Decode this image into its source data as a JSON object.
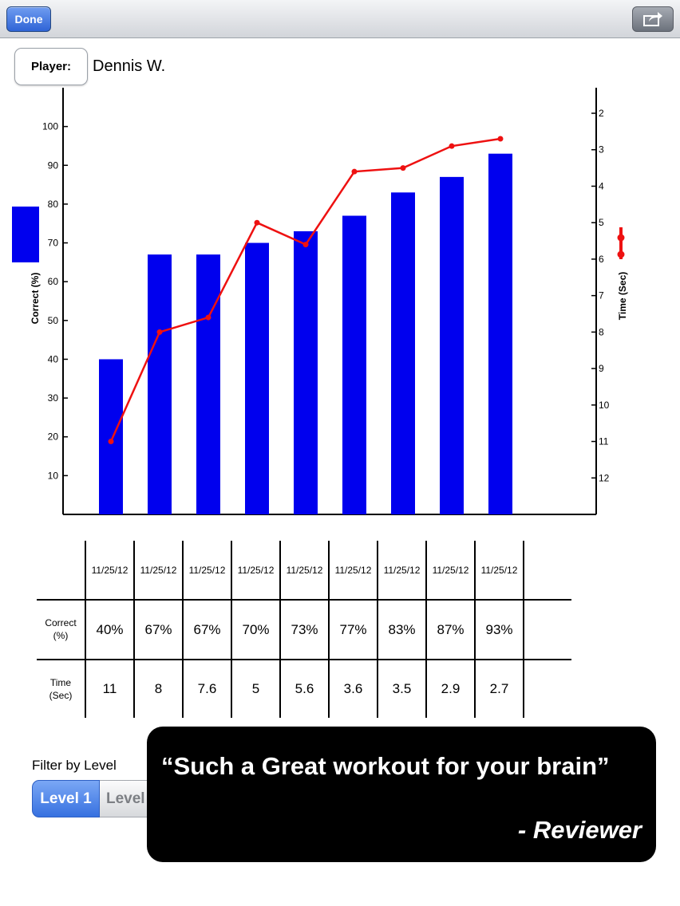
{
  "navbar": {
    "done_label": "Done",
    "share_icon": "share-icon"
  },
  "player": {
    "label": "Player:",
    "name": "Dennis W."
  },
  "chart_data": {
    "type": "bar",
    "categories": [
      "11/25/12",
      "11/25/12",
      "11/25/12",
      "11/25/12",
      "11/25/12",
      "11/25/12",
      "11/25/12",
      "11/25/12",
      "11/25/12"
    ],
    "series": [
      {
        "type": "bar",
        "axis": "left",
        "color": "#0000ee",
        "values": [
          40,
          67,
          67,
          70,
          73,
          77,
          83,
          87,
          93
        ]
      },
      {
        "type": "line",
        "axis": "right",
        "color": "#ee1111",
        "values": [
          11,
          8,
          7.6,
          5,
          5.6,
          3.6,
          3.5,
          2.9,
          2.7
        ]
      }
    ],
    "ylabel": "Correct (%)",
    "y2label": "Time (Sec)",
    "yticks": [
      10,
      20,
      30,
      40,
      50,
      60,
      70,
      80,
      90,
      100
    ],
    "y2ticks": [
      2,
      3,
      4,
      5,
      6,
      7,
      8,
      9,
      10,
      11,
      12
    ],
    "ylim": [
      0,
      110
    ],
    "y2lim": [
      1.3,
      13
    ],
    "y2_inverted": true,
    "grid": false
  },
  "table": {
    "dates": [
      "11/25/12",
      "11/25/12",
      "11/25/12",
      "11/25/12",
      "11/25/12",
      "11/25/12",
      "11/25/12",
      "11/25/12",
      "11/25/12"
    ],
    "correct_label_1": "Correct",
    "correct_label_2": "(%)",
    "time_label_1": "Time",
    "time_label_2": "(Sec)",
    "correct": [
      "40%",
      "67%",
      "67%",
      "70%",
      "73%",
      "77%",
      "83%",
      "87%",
      "93%"
    ],
    "time": [
      "11",
      "8",
      "7.6",
      "5",
      "5.6",
      "3.6",
      "3.5",
      "2.9",
      "2.7"
    ]
  },
  "filter": {
    "label": "Filter by Level",
    "level1": "Level 1",
    "level2": "Level"
  },
  "quote": {
    "text": "“Such a Great workout for your brain”",
    "author": "- Reviewer"
  }
}
